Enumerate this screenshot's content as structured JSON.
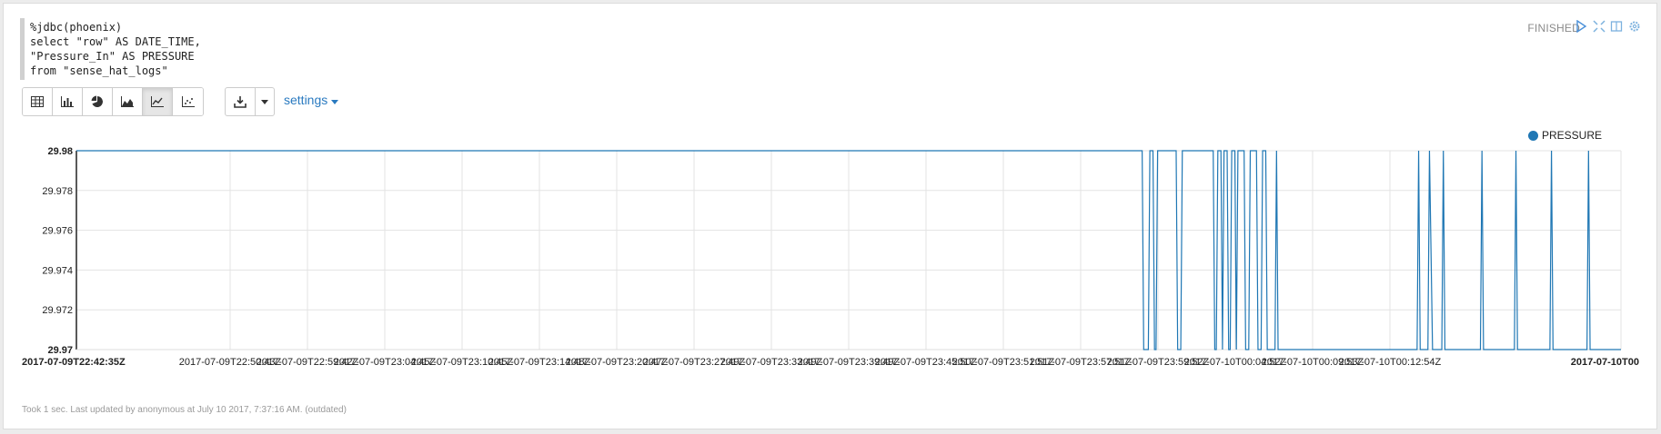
{
  "code": {
    "lines": [
      "%jdbc(phoenix)",
      "select \"row\" AS DATE_TIME,",
      "\"Pressure_In\" AS PRESSURE",
      "from \"sense_hat_logs\""
    ]
  },
  "status": {
    "label": "FINISHED",
    "controls": [
      "play-icon",
      "expand-icon",
      "book-icon",
      "gear-icon"
    ]
  },
  "toolbar": {
    "view_buttons": [
      "table-icon",
      "bar-chart-icon",
      "pie-chart-icon",
      "area-chart-icon",
      "line-chart-icon",
      "scatter-chart-icon"
    ],
    "active_view": "line-chart-icon",
    "download_icon": "download-icon",
    "settings_label": "settings"
  },
  "footer": {
    "text": "Took 1 sec. Last updated by anonymous at July 10 2017, 7:37:16 AM. (outdated)"
  },
  "chart_data": {
    "type": "line",
    "series": [
      {
        "name": "PRESSURE",
        "color": "#1f77b4"
      }
    ],
    "ylim": [
      29.97,
      29.98
    ],
    "yticks": [
      "29.98",
      "29.978",
      "29.976",
      "29.974",
      "29.972",
      "29.97"
    ],
    "xticks": [
      "2017-07-09T22:42:35Z",
      "2017-07-09T22:50:43Z",
      "2017-07-09T22:59:42Z",
      "2017-07-09T23:04:45Z",
      "2017-07-09T23:10:45Z",
      "2017-07-09T23:14:48Z",
      "2017-07-09T23:20:47Z",
      "2017-07-09T23:27:49Z",
      "2017-07-09T23:33:49Z",
      "2017-07-09T23:39:49Z",
      "2017-07-09T23:45:50Z",
      "2017-07-09T23:51:51Z",
      "2017-07-09T23:57:51Z",
      "2017-07-09T23:59:52Z",
      "2017-07-10T00:04:52Z",
      "2017-07-10T00:09:53Z",
      "2017-07-10T00:12:54Z",
      "2017-07-10T00"
    ],
    "grid": true,
    "legend_position": "top-right",
    "x_domain": [
      0,
      1000
    ],
    "points": [
      [
        0,
        29.98
      ],
      [
        690,
        29.98
      ],
      [
        691,
        29.97
      ],
      [
        694,
        29.97
      ],
      [
        695,
        29.98
      ],
      [
        697,
        29.98
      ],
      [
        698,
        29.97
      ],
      [
        699,
        29.97
      ],
      [
        700,
        29.98
      ],
      [
        712,
        29.98
      ],
      [
        713,
        29.97
      ],
      [
        715,
        29.97
      ],
      [
        716,
        29.98
      ],
      [
        736,
        29.98
      ],
      [
        737,
        29.97
      ],
      [
        738,
        29.97
      ],
      [
        739,
        29.98
      ],
      [
        741,
        29.98
      ],
      [
        742,
        29.97
      ],
      [
        743,
        29.98
      ],
      [
        745,
        29.98
      ],
      [
        746,
        29.97
      ],
      [
        747,
        29.97
      ],
      [
        748,
        29.98
      ],
      [
        750,
        29.98
      ],
      [
        751,
        29.97
      ],
      [
        752,
        29.98
      ],
      [
        756,
        29.98
      ],
      [
        757,
        29.97
      ],
      [
        759,
        29.97
      ],
      [
        760,
        29.98
      ],
      [
        764,
        29.98
      ],
      [
        765,
        29.97
      ],
      [
        767,
        29.97
      ],
      [
        768,
        29.98
      ],
      [
        770,
        29.98
      ],
      [
        771,
        29.97
      ],
      [
        776,
        29.97
      ],
      [
        777,
        29.98
      ],
      [
        778,
        29.97
      ],
      [
        868,
        29.97
      ],
      [
        869,
        29.98
      ],
      [
        870,
        29.97
      ],
      [
        875,
        29.97
      ],
      [
        876,
        29.98
      ],
      [
        878,
        29.97
      ],
      [
        884,
        29.97
      ],
      [
        885,
        29.98
      ],
      [
        886,
        29.97
      ],
      [
        909,
        29.97
      ],
      [
        910,
        29.98
      ],
      [
        911,
        29.97
      ],
      [
        931,
        29.97
      ],
      [
        932,
        29.98
      ],
      [
        933,
        29.97
      ],
      [
        954,
        29.97
      ],
      [
        955,
        29.98
      ],
      [
        956,
        29.97
      ],
      [
        978,
        29.97
      ],
      [
        979,
        29.98
      ],
      [
        980,
        29.97
      ],
      [
        1000,
        29.97
      ]
    ]
  }
}
